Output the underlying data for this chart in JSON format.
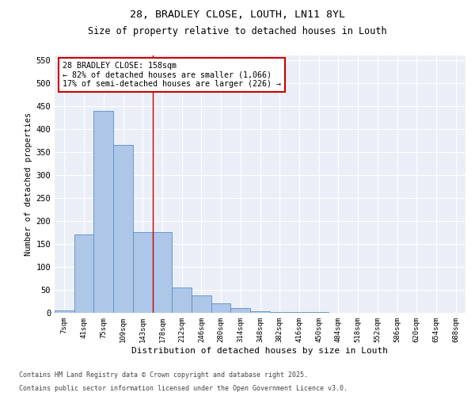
{
  "title1": "28, BRADLEY CLOSE, LOUTH, LN11 8YL",
  "title2": "Size of property relative to detached houses in Louth",
  "xlabel": "Distribution of detached houses by size in Louth",
  "ylabel": "Number of detached properties",
  "bar_labels": [
    "7sqm",
    "41sqm",
    "75sqm",
    "109sqm",
    "143sqm",
    "178sqm",
    "212sqm",
    "246sqm",
    "280sqm",
    "314sqm",
    "348sqm",
    "382sqm",
    "416sqm",
    "450sqm",
    "484sqm",
    "518sqm",
    "552sqm",
    "586sqm",
    "620sqm",
    "654sqm",
    "688sqm"
  ],
  "bar_values": [
    6,
    170,
    440,
    365,
    175,
    175,
    55,
    38,
    20,
    10,
    4,
    2,
    1,
    1,
    0,
    0,
    0,
    0,
    0,
    0,
    0
  ],
  "bar_color": "#aec6e8",
  "bar_edge_color": "#5b8ec4",
  "vline_x": 4.5,
  "vline_color": "#cc0000",
  "annotation_text": "28 BRADLEY CLOSE: 158sqm\n← 82% of detached houses are smaller (1,066)\n17% of semi-detached houses are larger (226) →",
  "annotation_box_color": "#cc0000",
  "ylim": [
    0,
    560
  ],
  "yticks": [
    0,
    50,
    100,
    150,
    200,
    250,
    300,
    350,
    400,
    450,
    500,
    550
  ],
  "bg_color": "#eaeff7",
  "footer1": "Contains HM Land Registry data © Crown copyright and database right 2025.",
  "footer2": "Contains public sector information licensed under the Open Government Licence v3.0."
}
